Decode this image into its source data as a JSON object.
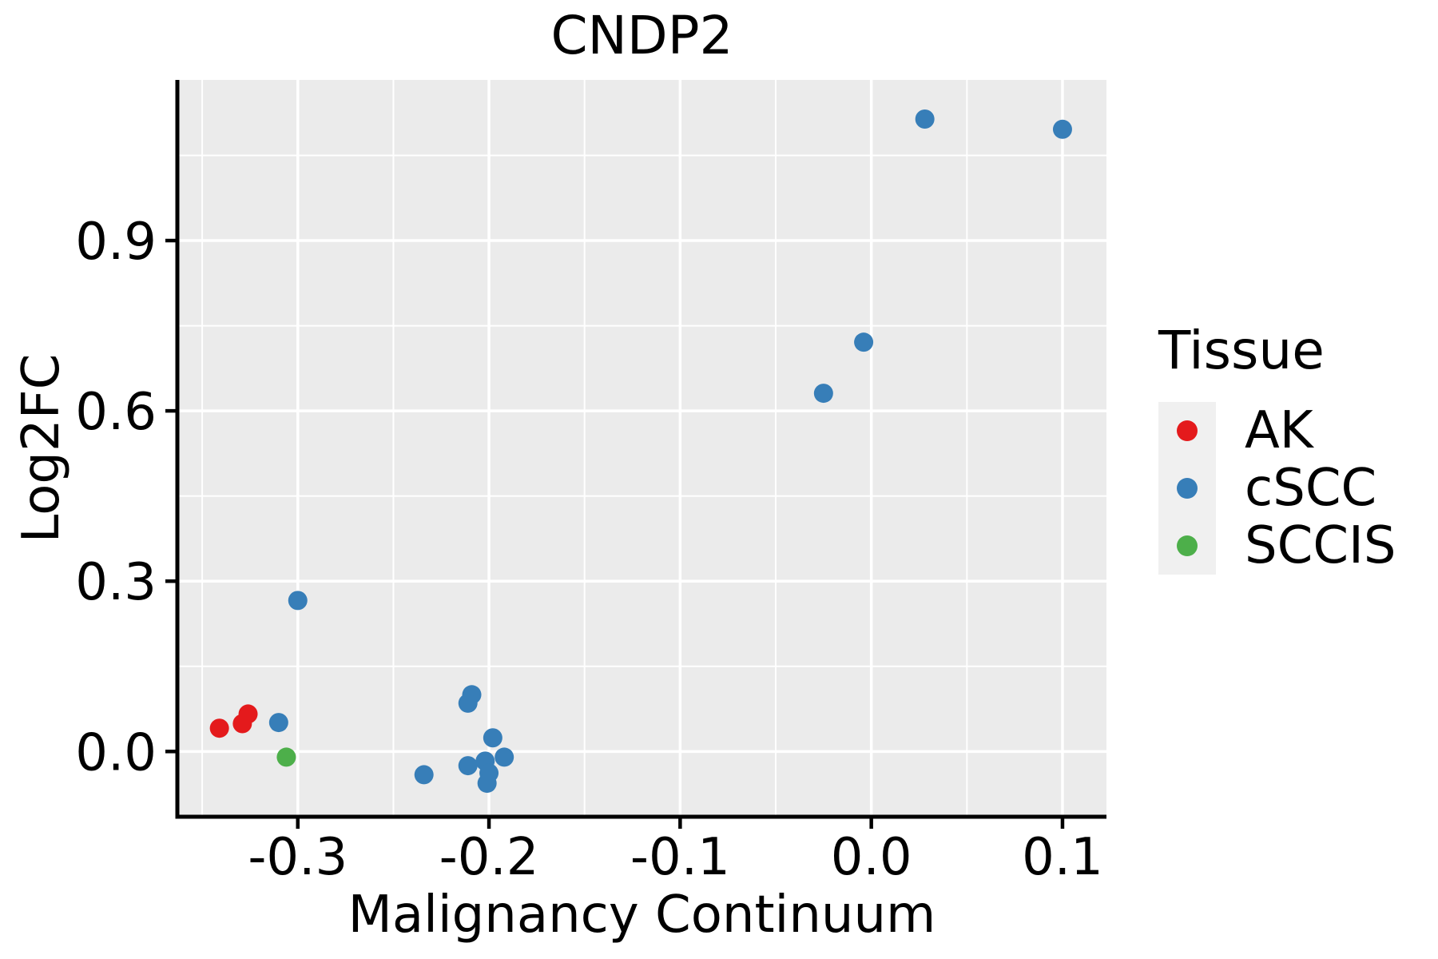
{
  "title": "CNDP2",
  "x_axis": {
    "label": "Malignancy Continuum",
    "tick_labels": [
      "-0.3",
      "-0.2",
      "-0.1",
      "0.0",
      "0.1"
    ]
  },
  "y_axis": {
    "label": "Log2FC",
    "tick_labels": [
      "0.0",
      "0.3",
      "0.6",
      "0.9"
    ]
  },
  "legend": {
    "title": "Tissue",
    "items": [
      {
        "label": "AK",
        "color": "#E41A1C"
      },
      {
        "label": "cSCC",
        "color": "#377EB8"
      },
      {
        "label": "SCCIS",
        "color": "#4DAF4A"
      }
    ]
  },
  "colors": {
    "panel_background": "#EBEBEB",
    "gridline": "#FFFFFF",
    "axis_line": "#000000",
    "text": "#000000",
    "legend_key_background": "#F0F0F0"
  },
  "chart_data": {
    "type": "scatter",
    "title": "CNDP2",
    "xlabel": "Malignancy Continuum",
    "ylabel": "Log2FC",
    "xlim": [
      -0.363,
      0.123
    ],
    "ylim": [
      -0.115,
      1.183
    ],
    "x_ticks": [
      -0.3,
      -0.2,
      -0.1,
      0.0,
      0.1
    ],
    "y_ticks": [
      0.0,
      0.3,
      0.6,
      0.9
    ],
    "grid": "major-and-minor",
    "legend_position": "right",
    "series": [
      {
        "name": "AK",
        "color": "#E41A1C",
        "points": [
          [
            -0.341,
            0.041
          ],
          [
            -0.329,
            0.049
          ],
          [
            -0.326,
            0.066
          ]
        ]
      },
      {
        "name": "cSCC",
        "color": "#377EB8",
        "points": [
          [
            -0.31,
            0.051
          ],
          [
            -0.3,
            0.266
          ],
          [
            -0.234,
            -0.041
          ],
          [
            -0.209,
            0.1
          ],
          [
            -0.211,
            0.085
          ],
          [
            -0.198,
            0.024
          ],
          [
            -0.192,
            -0.01
          ],
          [
            -0.202,
            -0.017
          ],
          [
            -0.211,
            -0.025
          ],
          [
            -0.2,
            -0.038
          ],
          [
            -0.201,
            -0.056
          ],
          [
            -0.025,
            0.631
          ],
          [
            -0.004,
            0.721
          ],
          [
            0.028,
            1.114
          ],
          [
            0.1,
            1.096
          ]
        ]
      },
      {
        "name": "SCCIS",
        "color": "#4DAF4A",
        "points": [
          [
            -0.306,
            -0.01
          ]
        ]
      }
    ]
  }
}
